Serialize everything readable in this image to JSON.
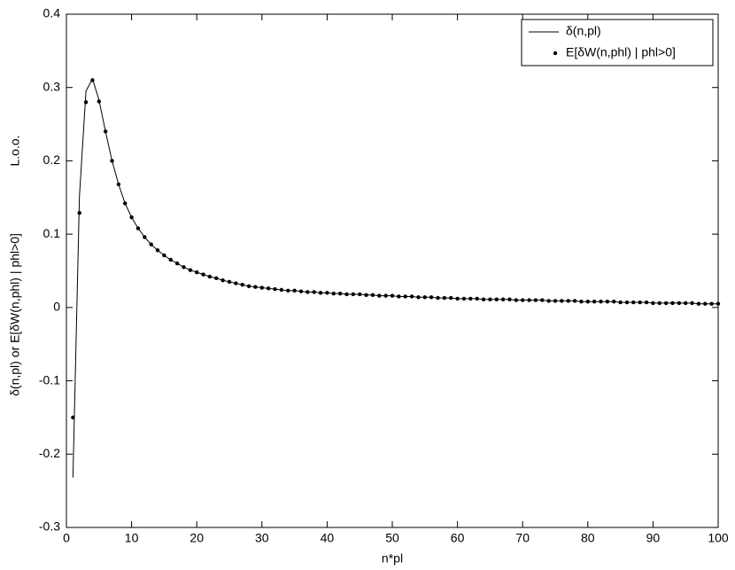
{
  "chart_data": {
    "type": "line",
    "xlabel": "n*pl",
    "ylabel": "δ(n,pl) or E[δW(n,phl) | phl>0]",
    "annotation": "L.o.o.",
    "x": [
      1,
      2,
      3,
      4,
      5,
      6,
      7,
      8,
      9,
      10,
      11,
      12,
      13,
      14,
      15,
      16,
      17,
      18,
      19,
      20,
      21,
      22,
      23,
      24,
      25,
      26,
      27,
      28,
      29,
      30,
      31,
      32,
      33,
      34,
      35,
      36,
      37,
      38,
      39,
      40,
      41,
      42,
      43,
      44,
      45,
      46,
      47,
      48,
      49,
      50,
      51,
      52,
      53,
      54,
      55,
      56,
      57,
      58,
      59,
      60,
      61,
      62,
      63,
      64,
      65,
      66,
      67,
      68,
      69,
      70,
      71,
      72,
      73,
      74,
      75,
      76,
      77,
      78,
      79,
      80,
      81,
      82,
      83,
      84,
      85,
      86,
      87,
      88,
      89,
      90,
      91,
      92,
      93,
      94,
      95,
      96,
      97,
      98,
      99,
      100
    ],
    "series": [
      {
        "name": "δ(n,pl)",
        "color": "#000000",
        "mode": "line",
        "values": [
          -0.232,
          0.152,
          0.295,
          0.312,
          0.283,
          0.24,
          0.2,
          0.168,
          0.142,
          0.123,
          0.108,
          0.096,
          0.086,
          0.078,
          0.071,
          0.065,
          0.06,
          0.055,
          0.051,
          0.048,
          0.045,
          0.042,
          0.04,
          0.037,
          0.035,
          0.033,
          0.031,
          0.029,
          0.028,
          0.027,
          0.026,
          0.025,
          0.024,
          0.023,
          0.023,
          0.022,
          0.021,
          0.021,
          0.02,
          0.02,
          0.019,
          0.019,
          0.018,
          0.018,
          0.018,
          0.017,
          0.017,
          0.016,
          0.016,
          0.016,
          0.015,
          0.015,
          0.015,
          0.014,
          0.014,
          0.014,
          0.013,
          0.013,
          0.013,
          0.012,
          0.012,
          0.012,
          0.012,
          0.011,
          0.011,
          0.011,
          0.011,
          0.011,
          0.01,
          0.01,
          0.01,
          0.01,
          0.01,
          0.009,
          0.009,
          0.009,
          0.009,
          0.009,
          0.008,
          0.008,
          0.008,
          0.008,
          0.008,
          0.008,
          0.007,
          0.007,
          0.007,
          0.007,
          0.007,
          0.006,
          0.006,
          0.006,
          0.006,
          0.006,
          0.006,
          0.006,
          0.005,
          0.005,
          0.005,
          0.005
        ]
      },
      {
        "name": "E[δW(n,phl) | phl>0]",
        "color": "#000000",
        "mode": "markers",
        "values": [
          -0.15,
          0.129,
          0.28,
          0.31,
          0.281,
          0.24,
          0.2,
          0.168,
          0.142,
          0.123,
          0.108,
          0.096,
          0.086,
          0.078,
          0.071,
          0.065,
          0.06,
          0.055,
          0.051,
          0.048,
          0.045,
          0.042,
          0.04,
          0.037,
          0.035,
          0.033,
          0.031,
          0.029,
          0.028,
          0.027,
          0.026,
          0.025,
          0.024,
          0.023,
          0.023,
          0.022,
          0.021,
          0.021,
          0.02,
          0.02,
          0.019,
          0.019,
          0.018,
          0.018,
          0.018,
          0.017,
          0.017,
          0.016,
          0.016,
          0.016,
          0.015,
          0.015,
          0.015,
          0.014,
          0.014,
          0.014,
          0.013,
          0.013,
          0.013,
          0.012,
          0.012,
          0.012,
          0.012,
          0.011,
          0.011,
          0.011,
          0.011,
          0.011,
          0.01,
          0.01,
          0.01,
          0.01,
          0.01,
          0.009,
          0.009,
          0.009,
          0.009,
          0.009,
          0.008,
          0.008,
          0.008,
          0.008,
          0.008,
          0.008,
          0.007,
          0.007,
          0.007,
          0.007,
          0.007,
          0.006,
          0.006,
          0.006,
          0.006,
          0.006,
          0.006,
          0.006,
          0.005,
          0.005,
          0.005,
          0.005
        ]
      }
    ],
    "xlim": [
      0,
      100
    ],
    "xticks": [
      0,
      10,
      20,
      30,
      40,
      50,
      60,
      70,
      80,
      90,
      100
    ],
    "ylim": [
      -0.3,
      0.4
    ],
    "yticks": [
      -0.3,
      -0.2,
      -0.1,
      0,
      0.1,
      0.2,
      0.3,
      0.4
    ],
    "grid": false,
    "legend": "upper right"
  }
}
